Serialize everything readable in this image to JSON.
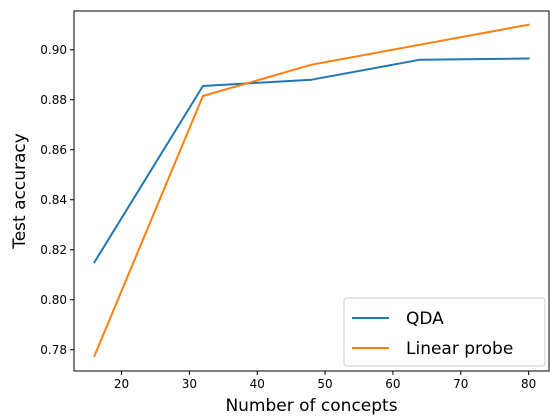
{
  "chart_data": {
    "type": "line",
    "title": "",
    "xlabel": "Number of concepts",
    "ylabel": "Test accuracy",
    "x": [
      16,
      32,
      48,
      64,
      80
    ],
    "xlim": [
      13,
      83
    ],
    "ylim": [
      0.7715,
      0.9155
    ],
    "xticks": [
      20,
      30,
      40,
      50,
      60,
      70,
      80
    ],
    "yticks": [
      0.78,
      0.8,
      0.82,
      0.84,
      0.86,
      0.88,
      0.9
    ],
    "xtick_labels": [
      "20",
      "30",
      "40",
      "50",
      "60",
      "70",
      "80"
    ],
    "ytick_labels": [
      "0.78",
      "0.80",
      "0.82",
      "0.84",
      "0.86",
      "0.88",
      "0.90"
    ],
    "grid": false,
    "legend_position": "bottom-right",
    "series": [
      {
        "name": "QDA",
        "color": "#1f77b4",
        "values": [
          0.815,
          0.8855,
          0.888,
          0.896,
          0.8965
        ]
      },
      {
        "name": "Linear probe",
        "color": "#ff7f0e",
        "values": [
          0.7775,
          0.8815,
          0.894,
          0.902,
          0.91
        ]
      }
    ]
  }
}
